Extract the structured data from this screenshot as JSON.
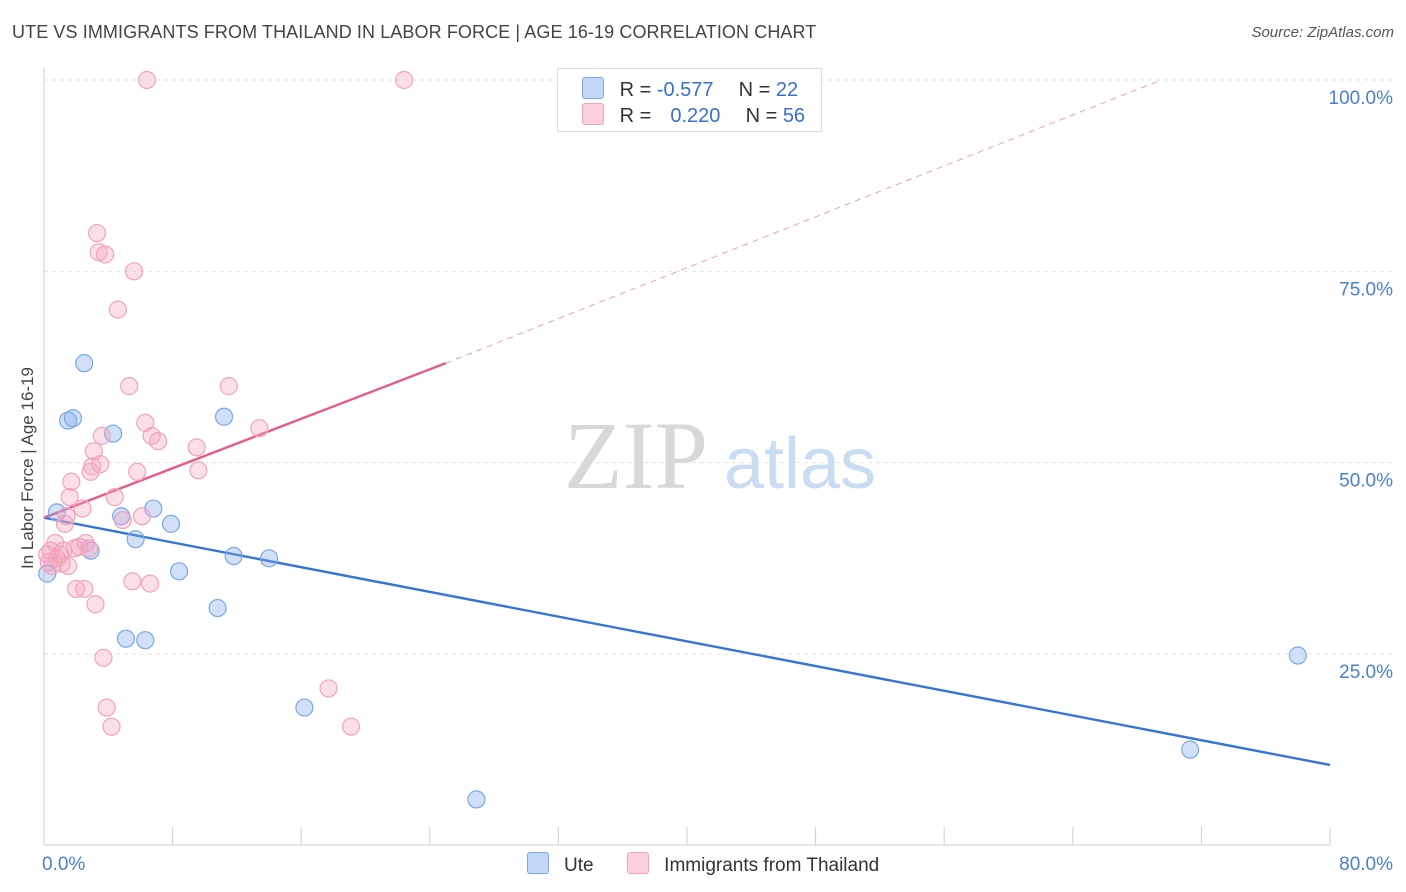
{
  "header": {
    "title": "UTE VS IMMIGRANTS FROM THAILAND IN LABOR FORCE | AGE 16-19 CORRELATION CHART",
    "source": "Source: ZipAtlas.com"
  },
  "watermark": {
    "zip": "ZIP",
    "atlas": "atlas"
  },
  "legend": {
    "rows": [
      {
        "r_label": "R =",
        "r_value": "-0.577",
        "n_label": "N =",
        "n_value": "22",
        "color": "#aac8f2"
      },
      {
        "r_label": "R =",
        "r_value": "0.220",
        "n_label": "N =",
        "n_value": "56",
        "color": "#f5b6c9"
      }
    ]
  },
  "chart_data": {
    "type": "scatter",
    "ylabel": "In Labor Force | Age 16-19",
    "xlim": [
      0,
      80
    ],
    "ylim": [
      0,
      105
    ],
    "x_tick_labels": [
      {
        "value": 0,
        "label": "0.0%"
      },
      {
        "value": 80,
        "label": "80.0%"
      }
    ],
    "y_tick_labels": [
      {
        "value": 25,
        "label": "25.0%"
      },
      {
        "value": 50,
        "label": "50.0%"
      },
      {
        "value": 75,
        "label": "75.0%"
      },
      {
        "value": 100,
        "label": "100.0%"
      }
    ],
    "grid": true,
    "series": [
      {
        "name": "Ute",
        "color": "#7aa7e8",
        "trend_color": "#3575d4",
        "trend": {
          "x0": 0,
          "y0": 42.8,
          "x1": 80,
          "y1": 10.5
        },
        "points": [
          [
            0.2,
            35.5
          ],
          [
            0.8,
            43.5
          ],
          [
            1.5,
            55.5
          ],
          [
            1.8,
            55.8
          ],
          [
            2.5,
            63.0
          ],
          [
            2.9,
            38.5
          ],
          [
            4.3,
            53.8
          ],
          [
            4.8,
            43.0
          ],
          [
            5.1,
            27.0
          ],
          [
            5.7,
            40.0
          ],
          [
            6.3,
            26.8
          ],
          [
            6.8,
            44.0
          ],
          [
            7.9,
            42.0
          ],
          [
            8.4,
            35.8
          ],
          [
            10.8,
            31.0
          ],
          [
            11.2,
            56.0
          ],
          [
            11.8,
            37.8
          ],
          [
            14.0,
            37.5
          ],
          [
            16.2,
            18.0
          ],
          [
            26.9,
            6.0
          ],
          [
            71.3,
            12.5
          ],
          [
            78.0,
            24.8
          ]
        ]
      },
      {
        "name": "Immigrants from Thailand",
        "color": "#f2a3bc",
        "trend_color": "#e45c8a",
        "trend": {
          "x0": 0,
          "y0": 42.8,
          "x1": 25,
          "y1": 63.0
        },
        "trend_extension": {
          "x0": 25,
          "y0": 63.0,
          "x1": 69.5,
          "y1": 100.0
        },
        "points": [
          [
            0.2,
            38.0
          ],
          [
            0.3,
            37.0
          ],
          [
            0.4,
            38.5
          ],
          [
            0.5,
            36.5
          ],
          [
            0.7,
            39.5
          ],
          [
            0.8,
            37.5
          ],
          [
            1.0,
            38.0
          ],
          [
            1.1,
            36.8
          ],
          [
            1.2,
            38.5
          ],
          [
            1.3,
            42.0
          ],
          [
            1.4,
            43.0
          ],
          [
            1.5,
            36.5
          ],
          [
            1.6,
            45.5
          ],
          [
            1.7,
            47.5
          ],
          [
            1.9,
            38.8
          ],
          [
            2.0,
            33.5
          ],
          [
            2.2,
            39.0
          ],
          [
            2.4,
            44.0
          ],
          [
            2.5,
            33.5
          ],
          [
            2.6,
            39.5
          ],
          [
            2.8,
            38.8
          ],
          [
            2.9,
            48.8
          ],
          [
            3.0,
            49.5
          ],
          [
            3.1,
            51.5
          ],
          [
            3.2,
            31.5
          ],
          [
            3.3,
            80.0
          ],
          [
            3.4,
            77.5
          ],
          [
            3.5,
            49.8
          ],
          [
            3.6,
            53.5
          ],
          [
            3.7,
            24.5
          ],
          [
            3.8,
            77.2
          ],
          [
            3.9,
            18.0
          ],
          [
            4.2,
            15.5
          ],
          [
            4.4,
            45.5
          ],
          [
            4.6,
            70.0
          ],
          [
            4.9,
            42.5
          ],
          [
            5.3,
            60.0
          ],
          [
            5.5,
            34.5
          ],
          [
            5.6,
            75.0
          ],
          [
            5.8,
            48.8
          ],
          [
            6.1,
            43.0
          ],
          [
            6.3,
            55.2
          ],
          [
            6.4,
            100.0
          ],
          [
            6.6,
            34.2
          ],
          [
            6.7,
            53.5
          ],
          [
            7.1,
            52.8
          ],
          [
            9.5,
            52.0
          ],
          [
            9.6,
            49.0
          ],
          [
            11.5,
            60.0
          ],
          [
            13.4,
            54.5
          ],
          [
            17.7,
            20.5
          ],
          [
            19.1,
            15.5
          ],
          [
            22.4,
            100.0
          ]
        ]
      }
    ]
  }
}
